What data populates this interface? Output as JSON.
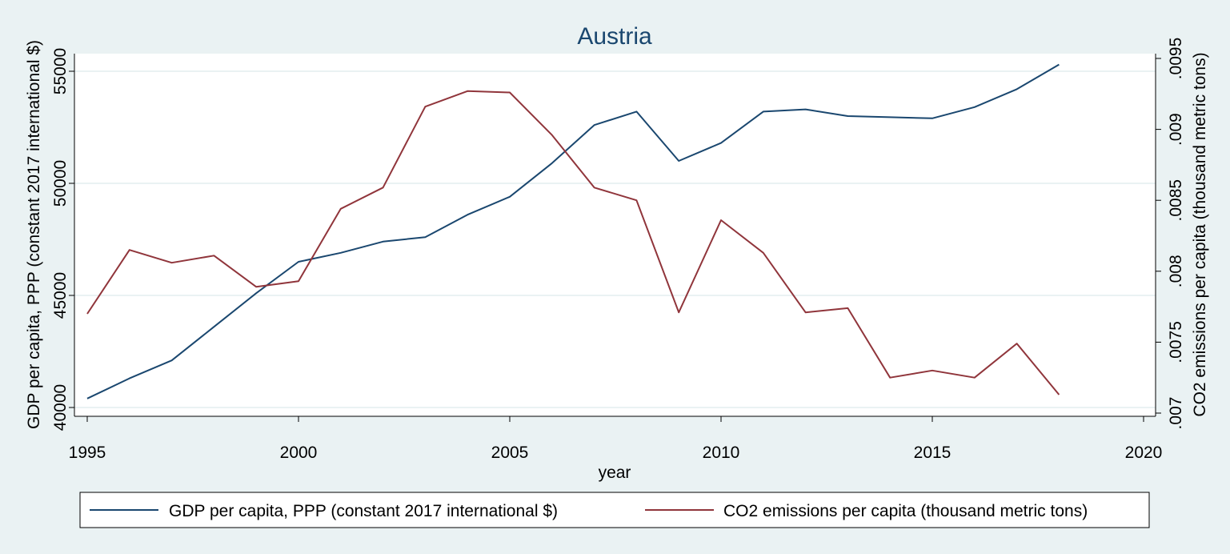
{
  "chart_data": {
    "type": "line",
    "title": "Austria",
    "xlabel": "year",
    "ylabel_left": "GDP per capita, PPP (constant 2017 international $)",
    "ylabel_right": "CO2 emissions per capita (thousand metric tons)",
    "xlim": [
      1995,
      2020
    ],
    "ylim_left": [
      40000,
      55000
    ],
    "ylim_right": [
      0.007,
      0.0095
    ],
    "x_ticks": [
      1995,
      2000,
      2005,
      2010,
      2015,
      2020
    ],
    "x_tick_labels": [
      "1995",
      "2000",
      "2005",
      "2010",
      "2015",
      "2020"
    ],
    "y_left_ticks": [
      40000,
      45000,
      50000,
      55000
    ],
    "y_left_tick_labels": [
      "40000",
      "45000",
      "50000",
      "55000"
    ],
    "y_right_ticks": [
      0.007,
      0.0075,
      0.008,
      0.0085,
      0.009,
      0.0095
    ],
    "y_right_tick_labels": [
      ".007",
      ".0075",
      ".008",
      ".0085",
      ".009",
      ".0095"
    ],
    "grid": true,
    "legend_position": "bottom",
    "x": [
      1995,
      1996,
      1997,
      1998,
      1999,
      2000,
      2001,
      2002,
      2003,
      2004,
      2005,
      2006,
      2007,
      2008,
      2009,
      2010,
      2011,
      2012,
      2013,
      2014,
      2015,
      2016,
      2017,
      2018
    ],
    "series": [
      {
        "name": "GDP per capita, PPP (constant 2017 international $)",
        "axis": "left",
        "color": "#1a476f",
        "values": [
          40400,
          41300,
          42100,
          43600,
          45100,
          46500,
          46900,
          47400,
          47600,
          48600,
          49400,
          50900,
          52600,
          53200,
          51000,
          51800,
          53200,
          53300,
          53000,
          52950,
          52900,
          53400,
          54200,
          55300
        ]
      },
      {
        "name": "CO2 emissions per capita (thousand metric tons)",
        "axis": "right",
        "color": "#90353b",
        "values": [
          0.0077,
          0.00815,
          0.00806,
          0.00811,
          0.00789,
          0.00793,
          0.00844,
          0.00859,
          0.00916,
          0.00927,
          0.00926,
          0.00896,
          0.00859,
          0.0085,
          0.00771,
          0.00836,
          0.00813,
          0.00771,
          0.00774,
          0.00725,
          0.0073,
          0.00725,
          0.00749,
          0.00713
        ]
      }
    ]
  }
}
